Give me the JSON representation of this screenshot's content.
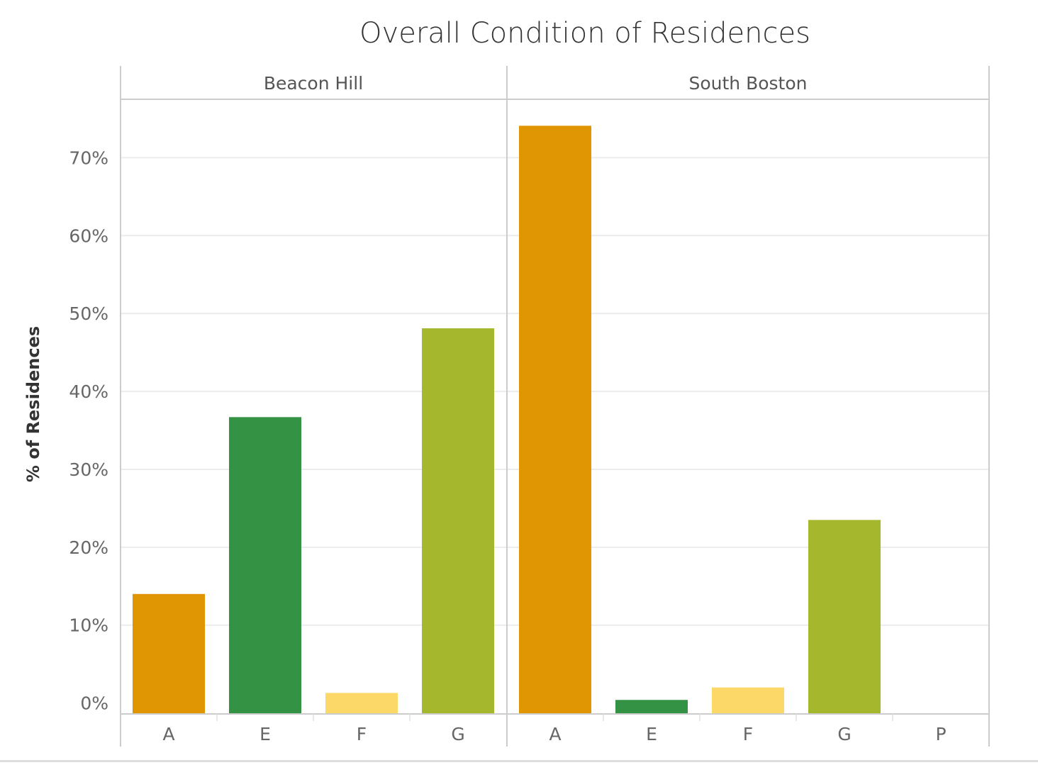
{
  "chart_data": {
    "type": "bar",
    "title": "Overall Condition of Residences",
    "ylabel": "% of Residences",
    "xlabel": "",
    "ylim": [
      -1.4,
      77.5
    ],
    "yticks": [
      0,
      10,
      20,
      30,
      40,
      50,
      60,
      70
    ],
    "ytick_labels": [
      "0%",
      "10%",
      "20%",
      "30%",
      "40%",
      "50%",
      "60%",
      "70%"
    ],
    "grid": true,
    "colors": {
      "A": "#e09603",
      "E": "#339244",
      "F": "#fcd868",
      "G": "#a5b72c",
      "P": "#e09603"
    },
    "panels": [
      {
        "name": "Beacon Hill",
        "categories": [
          "A",
          "E",
          "F",
          "G"
        ],
        "values": [
          14.0,
          36.7,
          1.3,
          48.1
        ]
      },
      {
        "name": "South Boston",
        "categories": [
          "A",
          "E",
          "F",
          "G",
          "P"
        ],
        "values": [
          74.1,
          0.4,
          2.0,
          23.5,
          0.0
        ]
      }
    ]
  }
}
